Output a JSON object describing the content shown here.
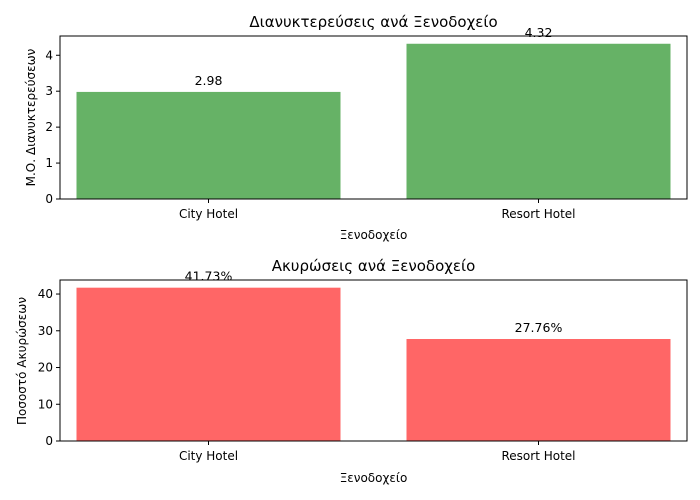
{
  "chart_data": [
    {
      "type": "bar",
      "title": "Διανυκτερεύσεις ανά Ξενοδοχείο",
      "xlabel": "Ξενοδοχείο",
      "ylabel": "Μ.Ο. Διανυκτερεύσεων",
      "categories": [
        "City Hotel",
        "Resort Hotel"
      ],
      "values": [
        2.98,
        4.32
      ],
      "value_labels": [
        "2.98",
        "4.32"
      ],
      "ylim": [
        0,
        4.536
      ],
      "yticks": [
        0,
        1,
        2,
        3,
        4
      ],
      "bar_color": "#66b266",
      "grid": false
    },
    {
      "type": "bar",
      "title": "Ακυρώσεις ανά Ξενοδοχείο",
      "xlabel": "Ξενοδοχείο",
      "ylabel": "Ποσοστό Ακυρώσεων",
      "categories": [
        "City Hotel",
        "Resort Hotel"
      ],
      "values": [
        41.73,
        27.76
      ],
      "value_labels": [
        "41.73%",
        "27.76%"
      ],
      "ylim": [
        0,
        43.82
      ],
      "yticks": [
        0,
        10,
        20,
        30,
        40
      ],
      "bar_color": "#ff6666",
      "grid": false
    }
  ]
}
